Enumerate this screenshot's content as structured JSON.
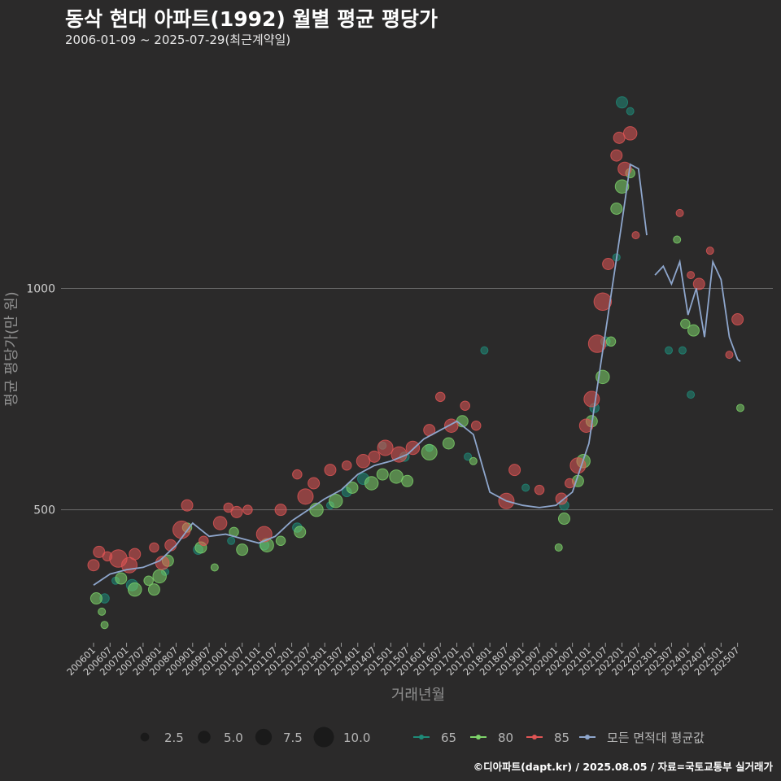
{
  "header": {
    "title": "동삭 현대 아파트(1992) 월별 평균 평당가",
    "subtitle": "2006-01-09 ~ 2025-07-29(최근계약일)"
  },
  "footer": {
    "credit": "©디아파트(dapt.kr) / 2025.08.05 / 자료=국토교통부 실거래가"
  },
  "chart_data": {
    "type": "scatter",
    "xlabel": "거래년월",
    "ylabel": "평균 평당가(만 원)",
    "ylim": [
      200,
      1550
    ],
    "yticks": [
      500,
      1000
    ],
    "ytick_labels": [
      "500",
      "1000"
    ],
    "x_range": [
      "200601",
      "202508"
    ],
    "xtick_labels": [
      "200601",
      "200607",
      "200701",
      "200707",
      "200801",
      "200807",
      "200901",
      "200907",
      "201001",
      "201007",
      "201101",
      "201107",
      "201201",
      "201207",
      "201301",
      "201307",
      "201401",
      "201407",
      "201501",
      "201507",
      "201601",
      "201607",
      "201701",
      "201707",
      "201801",
      "201807",
      "201901",
      "201907",
      "202001",
      "202007",
      "202101",
      "202107",
      "202201",
      "202207",
      "202301",
      "202307",
      "202401",
      "202407",
      "202501",
      "202507"
    ],
    "size_legend": {
      "values": [
        2.5,
        5.0,
        7.5,
        10.0
      ],
      "labels": [
        "2.5",
        "5.0",
        "7.5",
        "10.0"
      ]
    },
    "color_legend": [
      {
        "name": "65",
        "color": "#1f8a78"
      },
      {
        "name": "80",
        "color": "#7dd36a"
      },
      {
        "name": "85",
        "color": "#e05555"
      },
      {
        "name": "모든 면적대 평균값",
        "color": "#8ea6cc"
      }
    ],
    "average_line": {
      "name": "모든 면적대 평균값",
      "segments": [
        {
          "x": [
            "200601",
            "200607",
            "200701",
            "200707",
            "200801",
            "200807",
            "200901",
            "200907",
            "201001",
            "201007",
            "201101",
            "201107",
            "201201",
            "201207",
            "201301",
            "201307",
            "201401",
            "201407",
            "201501",
            "201507",
            "201601",
            "201607",
            "201701",
            "201707",
            "201801",
            "201807",
            "201901",
            "201907",
            "202001",
            "202007",
            "202101",
            "202107",
            "202201",
            "202204",
            "202207",
            "202210"
          ],
          "y": [
            330,
            355,
            365,
            370,
            385,
            420,
            470,
            440,
            445,
            435,
            425,
            440,
            475,
            500,
            525,
            545,
            580,
            600,
            610,
            625,
            660,
            680,
            700,
            670,
            540,
            520,
            510,
            505,
            510,
            540,
            650,
            900,
            1150,
            1280,
            1270,
            1120
          ]
        },
        {
          "x": [
            "202301",
            "202304",
            "202307",
            "202310",
            "202401",
            "202404",
            "202407",
            "202410",
            "202501",
            "202504",
            "202507",
            "202508"
          ],
          "y": [
            1030,
            1050,
            1010,
            1060,
            940,
            1000,
            890,
            1060,
            1020,
            890,
            840,
            835
          ]
        }
      ]
    },
    "series": [
      {
        "name": "65",
        "points": [
          {
            "x": "200605",
            "y": 300,
            "size": 3
          },
          {
            "x": "200609",
            "y": 340,
            "size": 2
          },
          {
            "x": "200703",
            "y": 330,
            "size": 4
          },
          {
            "x": "200803",
            "y": 360,
            "size": 2
          },
          {
            "x": "200903",
            "y": 410,
            "size": 3
          },
          {
            "x": "201003",
            "y": 430,
            "size": 2
          },
          {
            "x": "201103",
            "y": 420,
            "size": 3
          },
          {
            "x": "201203",
            "y": 460,
            "size": 3
          },
          {
            "x": "201303",
            "y": 510,
            "size": 2
          },
          {
            "x": "201309",
            "y": 540,
            "size": 3
          },
          {
            "x": "201403",
            "y": 570,
            "size": 4
          },
          {
            "x": "201410",
            "y": 645,
            "size": 2
          },
          {
            "x": "201506",
            "y": 620,
            "size": 3
          },
          {
            "x": "201603",
            "y": 640,
            "size": 2
          },
          {
            "x": "201705",
            "y": 620,
            "size": 2
          },
          {
            "x": "201711",
            "y": 860,
            "size": 2
          },
          {
            "x": "201902",
            "y": 550,
            "size": 2
          },
          {
            "x": "202004",
            "y": 510,
            "size": 3
          },
          {
            "x": "202103",
            "y": 730,
            "size": 3
          },
          {
            "x": "202107",
            "y": 880,
            "size": 3
          },
          {
            "x": "202111",
            "y": 1070,
            "size": 2
          },
          {
            "x": "202201",
            "y": 1420,
            "size": 4
          },
          {
            "x": "202204",
            "y": 1400,
            "size": 2
          },
          {
            "x": "202306",
            "y": 860,
            "size": 2
          },
          {
            "x": "202311",
            "y": 860,
            "size": 2
          },
          {
            "x": "202402",
            "y": 760,
            "size": 2
          }
        ]
      },
      {
        "name": "80",
        "points": [
          {
            "x": "200602",
            "y": 300,
            "size": 4
          },
          {
            "x": "200604",
            "y": 270,
            "size": 2
          },
          {
            "x": "200605",
            "y": 240,
            "size": 2
          },
          {
            "x": "200611",
            "y": 345,
            "size": 4
          },
          {
            "x": "200704",
            "y": 320,
            "size": 5
          },
          {
            "x": "200709",
            "y": 340,
            "size": 3
          },
          {
            "x": "200711",
            "y": 320,
            "size": 4
          },
          {
            "x": "200801",
            "y": 350,
            "size": 5
          },
          {
            "x": "200804",
            "y": 385,
            "size": 4
          },
          {
            "x": "200811",
            "y": 460,
            "size": 3
          },
          {
            "x": "200904",
            "y": 415,
            "size": 4
          },
          {
            "x": "200909",
            "y": 370,
            "size": 2
          },
          {
            "x": "201004",
            "y": 450,
            "size": 3
          },
          {
            "x": "201007",
            "y": 410,
            "size": 4
          },
          {
            "x": "201104",
            "y": 420,
            "size": 5
          },
          {
            "x": "201109",
            "y": 430,
            "size": 3
          },
          {
            "x": "201204",
            "y": 450,
            "size": 4
          },
          {
            "x": "201210",
            "y": 500,
            "size": 5
          },
          {
            "x": "201305",
            "y": 520,
            "size": 5
          },
          {
            "x": "201311",
            "y": 550,
            "size": 4
          },
          {
            "x": "201406",
            "y": 560,
            "size": 5
          },
          {
            "x": "201410",
            "y": 580,
            "size": 4
          },
          {
            "x": "201503",
            "y": 575,
            "size": 5
          },
          {
            "x": "201507",
            "y": 565,
            "size": 4
          },
          {
            "x": "201603",
            "y": 630,
            "size": 6
          },
          {
            "x": "201610",
            "y": 650,
            "size": 4
          },
          {
            "x": "201703",
            "y": 700,
            "size": 4
          },
          {
            "x": "201707",
            "y": 610,
            "size": 2
          },
          {
            "x": "202002",
            "y": 415,
            "size": 2
          },
          {
            "x": "202004",
            "y": 480,
            "size": 4
          },
          {
            "x": "202009",
            "y": 565,
            "size": 4
          },
          {
            "x": "202011",
            "y": 610,
            "size": 5
          },
          {
            "x": "202102",
            "y": 700,
            "size": 4
          },
          {
            "x": "202106",
            "y": 800,
            "size": 5
          },
          {
            "x": "202109",
            "y": 880,
            "size": 3
          },
          {
            "x": "202111",
            "y": 1180,
            "size": 4
          },
          {
            "x": "202201",
            "y": 1230,
            "size": 5
          },
          {
            "x": "202204",
            "y": 1260,
            "size": 3
          },
          {
            "x": "202309",
            "y": 1110,
            "size": 2
          },
          {
            "x": "202312",
            "y": 920,
            "size": 3
          },
          {
            "x": "202403",
            "y": 905,
            "size": 4
          },
          {
            "x": "202508",
            "y": 730,
            "size": 2
          }
        ]
      },
      {
        "name": "85",
        "points": [
          {
            "x": "200601",
            "y": 375,
            "size": 4
          },
          {
            "x": "200603",
            "y": 405,
            "size": 4
          },
          {
            "x": "200606",
            "y": 395,
            "size": 3
          },
          {
            "x": "200610",
            "y": 390,
            "size": 7
          },
          {
            "x": "200702",
            "y": 375,
            "size": 6
          },
          {
            "x": "200704",
            "y": 400,
            "size": 4
          },
          {
            "x": "200711",
            "y": 415,
            "size": 3
          },
          {
            "x": "200802",
            "y": 380,
            "size": 5
          },
          {
            "x": "200805",
            "y": 420,
            "size": 4
          },
          {
            "x": "200809",
            "y": 455,
            "size": 7
          },
          {
            "x": "200811",
            "y": 510,
            "size": 4
          },
          {
            "x": "200905",
            "y": 430,
            "size": 3
          },
          {
            "x": "200911",
            "y": 470,
            "size": 5
          },
          {
            "x": "201002",
            "y": 505,
            "size": 3
          },
          {
            "x": "201005",
            "y": 495,
            "size": 4
          },
          {
            "x": "201009",
            "y": 500,
            "size": 3
          },
          {
            "x": "201103",
            "y": 445,
            "size": 6
          },
          {
            "x": "201109",
            "y": 500,
            "size": 4
          },
          {
            "x": "201203",
            "y": 580,
            "size": 3
          },
          {
            "x": "201206",
            "y": 530,
            "size": 6
          },
          {
            "x": "201209",
            "y": 560,
            "size": 4
          },
          {
            "x": "201303",
            "y": 590,
            "size": 4
          },
          {
            "x": "201309",
            "y": 600,
            "size": 3
          },
          {
            "x": "201403",
            "y": 610,
            "size": 5
          },
          {
            "x": "201407",
            "y": 620,
            "size": 4
          },
          {
            "x": "201411",
            "y": 640,
            "size": 6
          },
          {
            "x": "201504",
            "y": 625,
            "size": 6
          },
          {
            "x": "201509",
            "y": 640,
            "size": 5
          },
          {
            "x": "201603",
            "y": 680,
            "size": 4
          },
          {
            "x": "201607",
            "y": 755,
            "size": 3
          },
          {
            "x": "201611",
            "y": 690,
            "size": 5
          },
          {
            "x": "201704",
            "y": 735,
            "size": 3
          },
          {
            "x": "201708",
            "y": 690,
            "size": 3
          },
          {
            "x": "201810",
            "y": 590,
            "size": 4
          },
          {
            "x": "201807",
            "y": 520,
            "size": 6
          },
          {
            "x": "201907",
            "y": 545,
            "size": 3
          },
          {
            "x": "202003",
            "y": 525,
            "size": 4
          },
          {
            "x": "202006",
            "y": 560,
            "size": 3
          },
          {
            "x": "202009",
            "y": 600,
            "size": 6
          },
          {
            "x": "202012",
            "y": 690,
            "size": 5
          },
          {
            "x": "202102",
            "y": 750,
            "size": 6
          },
          {
            "x": "202104",
            "y": 875,
            "size": 7
          },
          {
            "x": "202106",
            "y": 970,
            "size": 7
          },
          {
            "x": "202108",
            "y": 1055,
            "size": 4
          },
          {
            "x": "202111",
            "y": 1300,
            "size": 4
          },
          {
            "x": "202112",
            "y": 1340,
            "size": 4
          },
          {
            "x": "202202",
            "y": 1270,
            "size": 5
          },
          {
            "x": "202204",
            "y": 1350,
            "size": 5
          },
          {
            "x": "202206",
            "y": 1120,
            "size": 2
          },
          {
            "x": "202310",
            "y": 1170,
            "size": 2
          },
          {
            "x": "202402",
            "y": 1030,
            "size": 2
          },
          {
            "x": "202405",
            "y": 1010,
            "size": 4
          },
          {
            "x": "202409",
            "y": 1085,
            "size": 2
          },
          {
            "x": "202504",
            "y": 850,
            "size": 2
          },
          {
            "x": "202507",
            "y": 930,
            "size": 4
          }
        ]
      }
    ]
  }
}
